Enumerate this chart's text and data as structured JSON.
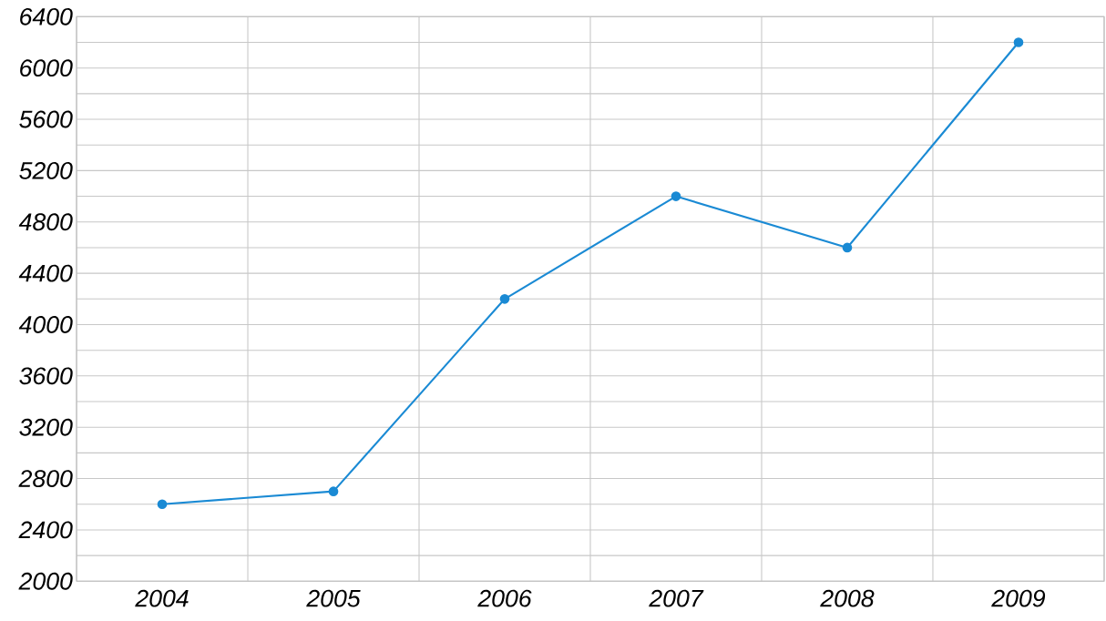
{
  "chart_data": {
    "type": "line",
    "categories": [
      "2004",
      "2005",
      "2006",
      "2007",
      "2008",
      "2009"
    ],
    "series": [
      {
        "color": "#1a8ad4",
        "values": [
          2600,
          2700,
          4200,
          5000,
          4600,
          6200
        ]
      }
    ],
    "ylim": [
      2000,
      6400
    ],
    "yticks": [
      2000,
      {
        "value": 2200,
        "label": null
      },
      2400,
      {
        "value": 2600,
        "label": null
      },
      2800,
      {
        "value": 3000,
        "label": null
      },
      3200,
      {
        "value": 3400,
        "label": null
      },
      3600,
      {
        "value": 3800,
        "label": null
      },
      4000,
      {
        "value": 4200,
        "label": null
      },
      4400,
      {
        "value": 4600,
        "label": null
      },
      4800,
      {
        "value": 5000,
        "label": null
      },
      5200,
      {
        "value": 5400,
        "label": null
      },
      5600,
      {
        "value": 5800,
        "label": null
      },
      6000,
      {
        "value": 6200,
        "label": null
      },
      6400
    ],
    "grid": true,
    "marker": "circle",
    "line_style": "solid"
  }
}
